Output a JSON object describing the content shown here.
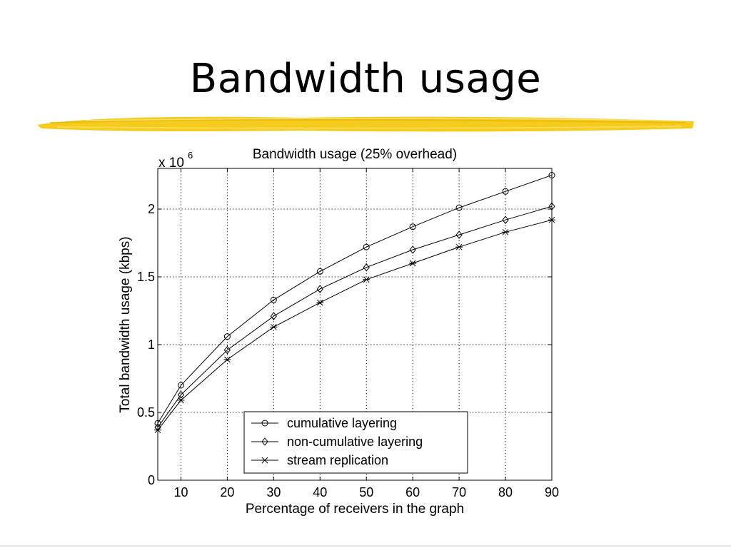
{
  "slide": {
    "title": "Bandwidth usage",
    "accent_color": "#f5cc1e"
  },
  "chart_data": {
    "type": "line",
    "title": "Bandwidth usage (25% overhead)",
    "xlabel": "Percentage of receivers in the graph",
    "ylabel": "Total bandwidth usage (kbps)",
    "y_multiplier": "x 10",
    "y_multiplier_exponent": "6",
    "xlim": [
      5,
      90
    ],
    "ylim": [
      0,
      2.3
    ],
    "x_ticks": [
      10,
      20,
      30,
      40,
      50,
      60,
      70,
      80,
      90
    ],
    "y_ticks": [
      0,
      0.5,
      1,
      1.5,
      2
    ],
    "y_tick_labels": [
      "0",
      "0.5",
      "1",
      "1.5",
      "2"
    ],
    "grid": true,
    "legend_position": "bottom-center",
    "x": [
      5,
      10,
      20,
      30,
      40,
      50,
      60,
      70,
      80,
      90
    ],
    "series": [
      {
        "name": "cumulative layering",
        "marker": "circle",
        "values": [
          0.42,
          0.7,
          1.06,
          1.33,
          1.54,
          1.72,
          1.87,
          2.01,
          2.13,
          2.25
        ]
      },
      {
        "name": "non-cumulative layering",
        "marker": "diamond",
        "values": [
          0.39,
          0.63,
          0.96,
          1.21,
          1.41,
          1.57,
          1.7,
          1.81,
          1.92,
          2.02
        ]
      },
      {
        "name": "stream replication",
        "marker": "star",
        "values": [
          0.37,
          0.59,
          0.89,
          1.13,
          1.31,
          1.48,
          1.6,
          1.72,
          1.83,
          1.92
        ]
      }
    ]
  }
}
